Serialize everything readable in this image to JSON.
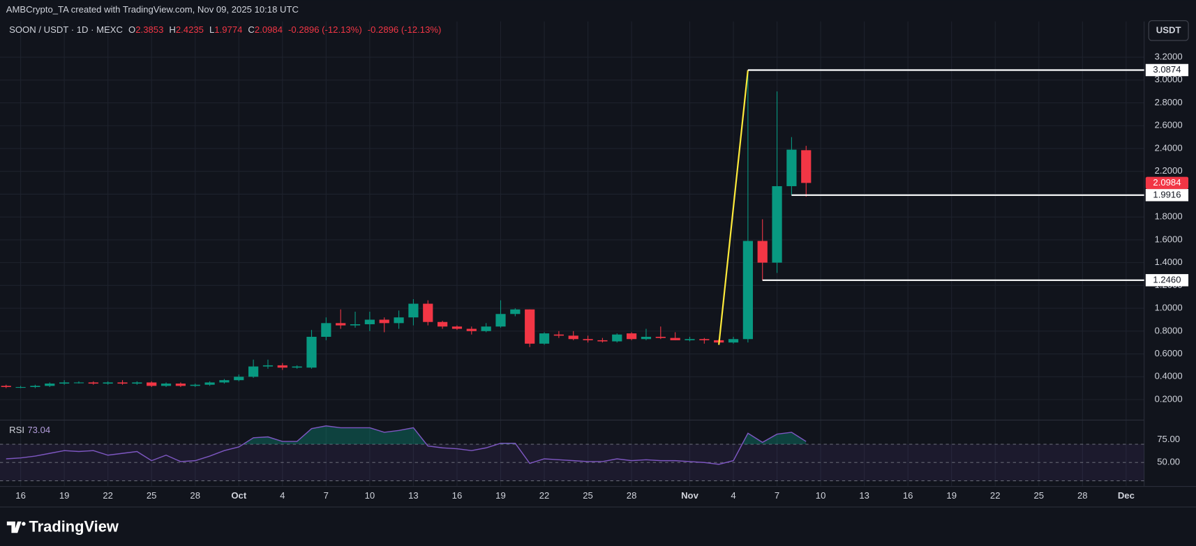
{
  "chart_data": {
    "type": "candlestick",
    "watermark": "AMBCrypto_TA created with TradingView.com, Nov 09, 2025 10:18 UTC",
    "title": "SOON / USDT · 1D · MEXC",
    "ohlc_labels": [
      "O",
      "H",
      "L",
      "C"
    ],
    "change_texts": [
      "-0.2896 (-12.13%)",
      "-0.2896 (-12.13%)"
    ],
    "currency": "USDT",
    "brand": "TradingView",
    "categories": [
      null,
      "16",
      null,
      null,
      "19",
      null,
      null,
      "22",
      null,
      null,
      "25",
      null,
      null,
      "28",
      null,
      null,
      "Oct",
      null,
      null,
      "4",
      null,
      null,
      "7",
      null,
      null,
      "10",
      null,
      null,
      "13",
      null,
      null,
      "16",
      null,
      null,
      "19",
      null,
      null,
      "22",
      null,
      null,
      "25",
      null,
      null,
      "28",
      null,
      null,
      null,
      "Nov",
      null,
      null,
      "4",
      null,
      null,
      "7",
      null,
      null,
      "10",
      null,
      null,
      "13",
      null,
      null,
      "16",
      null,
      null,
      "19",
      null,
      null,
      "22",
      null,
      null,
      "25",
      null,
      null,
      "28",
      null,
      null,
      "Dec",
      null
    ],
    "open": [
      0.32,
      0.31,
      0.31,
      0.32,
      0.34,
      0.35,
      0.35,
      0.34,
      0.35,
      0.34,
      0.35,
      0.32,
      0.34,
      0.32,
      0.33,
      0.35,
      0.37,
      0.4,
      0.49,
      0.5,
      0.48,
      0.48,
      0.75,
      0.87,
      0.85,
      0.86,
      0.9,
      0.87,
      0.92,
      1.04,
      0.88,
      0.84,
      0.82,
      0.8,
      0.84,
      0.95,
      0.99,
      0.69,
      0.77,
      0.76,
      0.73,
      0.72,
      0.71,
      0.78,
      0.73,
      0.75,
      0.74,
      0.72,
      0.73,
      0.72,
      0.7,
      0.73,
      1.59,
      1.4,
      2.07,
      2.3853,
      null,
      null,
      null,
      null,
      null,
      null,
      null,
      null,
      null,
      null,
      null,
      null,
      null,
      null,
      null,
      null,
      null,
      null,
      null,
      null,
      null,
      null,
      null
    ],
    "high": [
      0.33,
      0.32,
      0.33,
      0.35,
      0.37,
      0.36,
      0.36,
      0.36,
      0.37,
      0.36,
      0.36,
      0.35,
      0.35,
      0.34,
      0.36,
      0.38,
      0.42,
      0.55,
      0.55,
      0.52,
      0.5,
      0.81,
      0.92,
      0.99,
      0.97,
      0.97,
      0.92,
      0.98,
      1.08,
      1.07,
      0.89,
      0.85,
      0.84,
      0.87,
      1.07,
      1.0,
      0.99,
      0.79,
      0.8,
      0.8,
      0.76,
      0.74,
      0.78,
      0.79,
      0.82,
      0.84,
      0.79,
      0.75,
      0.74,
      0.73,
      0.75,
      3.0874,
      1.78,
      2.9,
      2.5,
      2.4235,
      null,
      null,
      null,
      null,
      null,
      null,
      null,
      null,
      null,
      null,
      null,
      null,
      null,
      null,
      null,
      null,
      null,
      null,
      null,
      null,
      null,
      null,
      null
    ],
    "low": [
      0.3,
      0.3,
      0.3,
      0.31,
      0.33,
      0.34,
      0.33,
      0.33,
      0.33,
      0.33,
      0.31,
      0.31,
      0.31,
      0.31,
      0.32,
      0.34,
      0.36,
      0.39,
      0.47,
      0.46,
      0.47,
      0.47,
      0.72,
      0.82,
      0.83,
      0.8,
      0.79,
      0.82,
      0.85,
      0.85,
      0.82,
      0.81,
      0.77,
      0.79,
      0.83,
      0.93,
      0.66,
      0.68,
      0.74,
      0.72,
      0.7,
      0.7,
      0.7,
      0.72,
      0.72,
      0.73,
      0.72,
      0.71,
      0.69,
      0.68,
      0.69,
      0.7,
      1.246,
      1.31,
      1.9916,
      1.9774,
      null,
      null,
      null,
      null,
      null,
      null,
      null,
      null,
      null,
      null,
      null,
      null,
      null,
      null,
      null,
      null,
      null,
      null,
      null,
      null,
      null,
      null,
      null
    ],
    "close": [
      0.31,
      0.31,
      0.32,
      0.34,
      0.35,
      0.35,
      0.34,
      0.35,
      0.34,
      0.35,
      0.32,
      0.34,
      0.32,
      0.33,
      0.35,
      0.37,
      0.4,
      0.49,
      0.5,
      0.48,
      0.49,
      0.75,
      0.87,
      0.85,
      0.86,
      0.9,
      0.87,
      0.92,
      1.04,
      0.88,
      0.84,
      0.82,
      0.8,
      0.84,
      0.95,
      0.99,
      0.69,
      0.78,
      0.76,
      0.73,
      0.72,
      0.71,
      0.77,
      0.73,
      0.75,
      0.74,
      0.72,
      0.73,
      0.72,
      0.7,
      0.73,
      1.59,
      1.4,
      2.07,
      2.39,
      2.0984,
      null,
      null,
      null,
      null,
      null,
      null,
      null,
      null,
      null,
      null,
      null,
      null,
      null,
      null,
      null,
      null,
      null,
      null,
      null,
      null,
      null,
      null,
      null
    ],
    "up_color": "#089981",
    "down_color": "#f23645",
    "ylim": [
      0.04,
      3.5
    ],
    "yticks": [
      {
        "value": 0.2,
        "label": "0.2000"
      },
      {
        "value": 0.4,
        "label": "0.4000"
      },
      {
        "value": 0.6,
        "label": "0.6000"
      },
      {
        "value": 0.8,
        "label": "0.8000"
      },
      {
        "value": 1.0,
        "label": "1.0000"
      },
      {
        "value": 1.2,
        "label": "1.2000"
      },
      {
        "value": 1.4,
        "label": "1.4000"
      },
      {
        "value": 1.6,
        "label": "1.6000"
      },
      {
        "value": 1.8,
        "label": "1.8000"
      },
      {
        "value": 2.0,
        "label": "2.0000"
      },
      {
        "value": 2.2,
        "label": "2.2000"
      },
      {
        "value": 2.4,
        "label": "2.4000"
      },
      {
        "value": 2.6,
        "label": "2.6000"
      },
      {
        "value": 2.8,
        "label": "2.8000"
      },
      {
        "value": 3.0,
        "label": "3.0000"
      },
      {
        "value": 3.2,
        "label": "3.2000"
      }
    ],
    "grid": true,
    "levels": [
      3.0874,
      1.9916,
      {
        "value": 1.246,
        "label": "1.2460"
      }
    ],
    "level_color": "#ffffff",
    "trend_color": "#ffeb3b",
    "rsi_label": "RSI",
    "rsi": [
      54,
      55,
      57,
      60,
      63,
      62,
      63,
      58,
      60,
      62,
      52,
      58,
      51,
      52,
      57,
      63,
      67,
      77,
      78,
      73,
      73,
      87,
      90,
      88,
      88,
      88,
      83,
      85,
      88,
      68,
      66,
      65,
      63,
      66,
      71,
      71,
      49,
      54,
      53,
      52,
      51,
      51,
      54,
      52,
      53,
      52,
      52,
      51,
      50,
      48,
      52,
      82,
      72,
      81,
      83,
      73.04,
      null,
      null,
      null,
      null,
      null,
      null,
      null,
      null,
      null,
      null,
      null,
      null,
      null,
      null,
      null,
      null,
      null,
      null,
      null,
      null,
      null,
      null,
      null
    ],
    "rsi_color": "#7e57c2",
    "rsi_ylim": [
      28,
      93
    ],
    "rsi_yticks": [
      {
        "value": 75,
        "label": "75.00"
      },
      {
        "value": 50,
        "label": "50.00"
      }
    ],
    "rsi_bands": [
      70,
      50,
      30
    ]
  }
}
